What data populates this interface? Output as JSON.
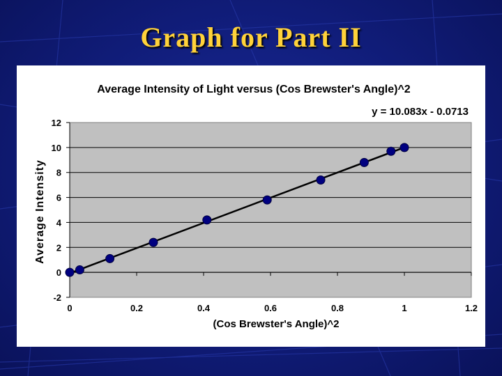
{
  "slide": {
    "title": "Graph for Part II"
  },
  "chart_data": {
    "type": "scatter",
    "title": "Average Intensity of Light versus (Cos Brewster's Angle)^2",
    "xlabel": "(Cos Brewster's Angle)^2",
    "ylabel": "Average Intensity",
    "xlim": [
      0,
      1.2
    ],
    "ylim": [
      -2,
      12
    ],
    "x_ticks": [
      "0",
      "0.2",
      "0.4",
      "0.6",
      "0.8",
      "1",
      "1.2"
    ],
    "y_ticks": [
      "-2",
      "0",
      "2",
      "4",
      "6",
      "8",
      "10",
      "12"
    ],
    "grid": "horizontal",
    "plot_background": "#c0c0c0",
    "point_color": "#000080",
    "series": [
      {
        "x": [
          0.0,
          0.03,
          0.12,
          0.25,
          0.41,
          0.59,
          0.75,
          0.88,
          0.96,
          1.0
        ],
        "y": [
          0.0,
          0.2,
          1.1,
          2.4,
          4.2,
          5.8,
          7.4,
          8.8,
          9.7,
          10.0
        ]
      }
    ],
    "trendline": {
      "equation": "y = 10.083x - 0.0713",
      "slope": 10.083,
      "intercept": -0.0713,
      "x_range": [
        0,
        1
      ]
    }
  }
}
